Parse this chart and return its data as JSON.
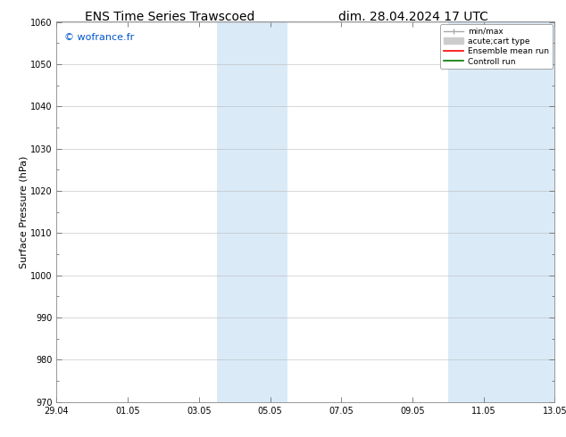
{
  "title_left": "ENS Time Series Trawscoed",
  "title_right": "dim. 28.04.2024 17 UTC",
  "watermark": "© wofrance.fr",
  "watermark_color": "#0055cc",
  "ylabel": "Surface Pressure (hPa)",
  "ylim": [
    970,
    1060
  ],
  "ytick_interval": 10,
  "xtick_labels": [
    "29.04",
    "01.05",
    "03.05",
    "05.05",
    "07.05",
    "09.05",
    "11.05",
    "13.05"
  ],
  "xtick_positions": [
    0,
    2,
    4,
    6,
    8,
    10,
    12,
    14
  ],
  "background_color": "#ffffff",
  "plot_bg_color": "#ffffff",
  "shaded_regions": [
    {
      "x_start": 4.5,
      "x_end": 6.5
    },
    {
      "x_start": 11.0,
      "x_end": 14.0
    }
  ],
  "shaded_color": "#daeaf7",
  "grid_color": "#bbbbbb",
  "legend_items": [
    {
      "label": "min/max",
      "color": "#aaaaaa",
      "lw": 1.0
    },
    {
      "label": "acute;cart type",
      "color": "#cccccc",
      "lw": 5
    },
    {
      "label": "Ensemble mean run",
      "color": "#ff0000",
      "lw": 1.2
    },
    {
      "label": "Controll run",
      "color": "#007700",
      "lw": 1.2
    }
  ],
  "title_fontsize": 10,
  "ylabel_fontsize": 8,
  "tick_fontsize": 7,
  "watermark_fontsize": 8,
  "legend_fontsize": 6.5
}
